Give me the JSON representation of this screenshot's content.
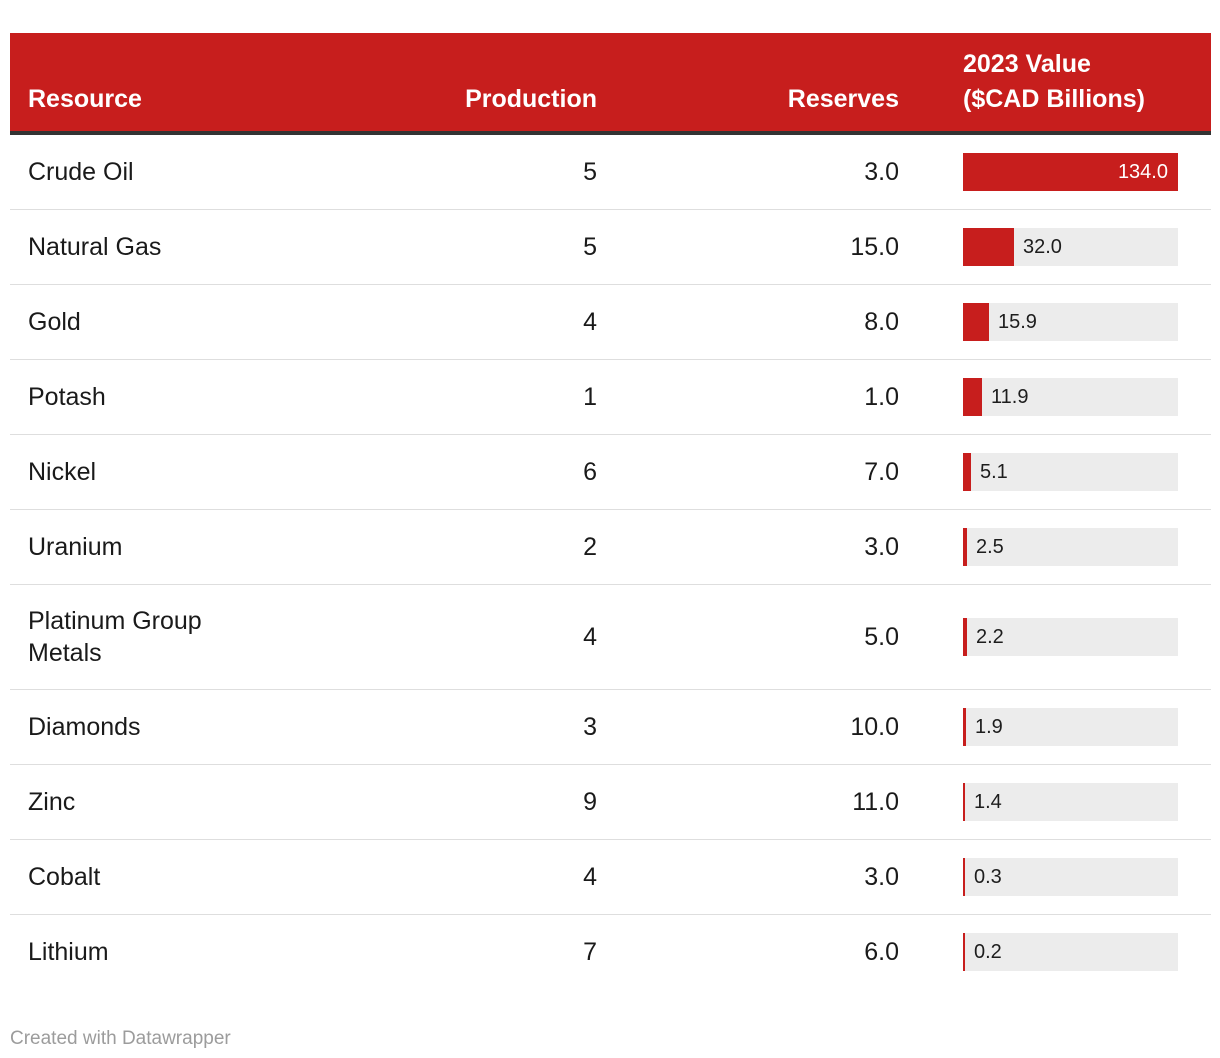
{
  "table": {
    "header": {
      "resource": "Resource",
      "production": "Production",
      "reserves": "Reserves",
      "value_line1": "2023 Value",
      "value_line2": "($CAD Billions)"
    },
    "rows": [
      {
        "resource": "Crude Oil",
        "production": "5",
        "reserves": "3.0",
        "value": 134.0,
        "value_label": "134.0"
      },
      {
        "resource": "Natural Gas",
        "production": "5",
        "reserves": "15.0",
        "value": 32.0,
        "value_label": "32.0"
      },
      {
        "resource": "Gold",
        "production": "4",
        "reserves": "8.0",
        "value": 15.9,
        "value_label": "15.9"
      },
      {
        "resource": "Potash",
        "production": "1",
        "reserves": "1.0",
        "value": 11.9,
        "value_label": "11.9"
      },
      {
        "resource": "Nickel",
        "production": "6",
        "reserves": "7.0",
        "value": 5.1,
        "value_label": "5.1"
      },
      {
        "resource": "Uranium",
        "production": "2",
        "reserves": "3.0",
        "value": 2.5,
        "value_label": "2.5"
      },
      {
        "resource": "Platinum Group Metals",
        "production": "4",
        "reserves": "5.0",
        "value": 2.2,
        "value_label": "2.2"
      },
      {
        "resource": "Diamonds",
        "production": "3",
        "reserves": "10.0",
        "value": 1.9,
        "value_label": "1.9"
      },
      {
        "resource": "Zinc",
        "production": "9",
        "reserves": "11.0",
        "value": 1.4,
        "value_label": "1.4"
      },
      {
        "resource": "Cobalt",
        "production": "4",
        "reserves": "3.0",
        "value": 0.3,
        "value_label": "0.3"
      },
      {
        "resource": "Lithium",
        "production": "7",
        "reserves": "6.0",
        "value": 0.2,
        "value_label": "0.2"
      }
    ],
    "bar_max": 134.0
  },
  "footer": {
    "credit": "Created with Datawrapper"
  },
  "colors": {
    "accent_red": "#c71e1d",
    "header_border": "#333333",
    "row_divider": "#dedede",
    "bar_background": "#ececec",
    "bar_label_light": "#ffffff",
    "bar_label_dark": "#1d1d1d",
    "footer_text": "#9c9c9c"
  },
  "chart_data": {
    "type": "table",
    "title": "",
    "columns": [
      "Resource",
      "Production",
      "Reserves",
      "2023 Value ($CAD Billions)"
    ],
    "rows": [
      [
        "Crude Oil",
        5,
        3.0,
        134.0
      ],
      [
        "Natural Gas",
        5,
        15.0,
        32.0
      ],
      [
        "Gold",
        4,
        8.0,
        15.9
      ],
      [
        "Potash",
        1,
        1.0,
        11.9
      ],
      [
        "Nickel",
        6,
        7.0,
        5.1
      ],
      [
        "Uranium",
        2,
        3.0,
        2.5
      ],
      [
        "Platinum Group Metals",
        4,
        5.0,
        2.2
      ],
      [
        "Diamonds",
        3,
        10.0,
        1.9
      ],
      [
        "Zinc",
        9,
        11.0,
        1.4
      ],
      [
        "Cobalt",
        4,
        3.0,
        0.3
      ],
      [
        "Lithium",
        7,
        6.0,
        0.2
      ]
    ],
    "bar_column": "2023 Value ($CAD Billions)",
    "bar_axis_range": [
      0,
      134.0
    ],
    "legend": "none",
    "annotations": [
      "Created with Datawrapper"
    ]
  }
}
